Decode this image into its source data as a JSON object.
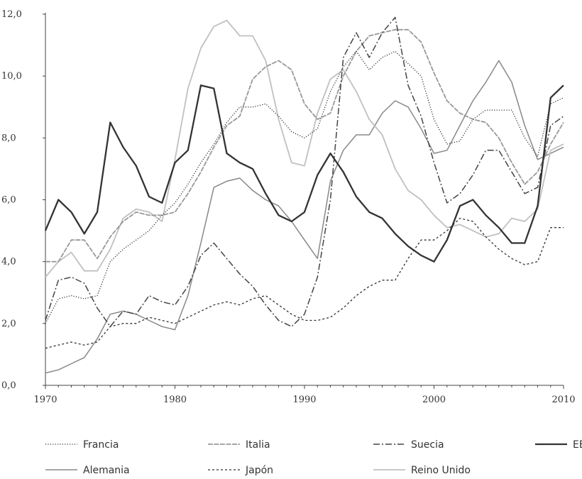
{
  "chart_data": {
    "type": "line",
    "title": "",
    "xlabel": "",
    "ylabel": "",
    "xlim": [
      1970,
      2010
    ],
    "ylim": [
      0,
      12
    ],
    "x_ticks": [
      "1970",
      "1980",
      "1990",
      "2000",
      "2010"
    ],
    "y_ticks": [
      "0,0",
      "2,0",
      "4,0",
      "6,0",
      "8,0",
      "10,0",
      "12,0"
    ],
    "grid": false,
    "legend_position": "bottom",
    "x": [
      1970,
      1971,
      1972,
      1973,
      1974,
      1975,
      1976,
      1977,
      1978,
      1979,
      1980,
      1981,
      1982,
      1983,
      1984,
      1985,
      1986,
      1987,
      1988,
      1989,
      1990,
      1991,
      1992,
      1993,
      1994,
      1995,
      1996,
      1997,
      1998,
      1999,
      2000,
      2001,
      2002,
      2003,
      2004,
      2005,
      2006,
      2007,
      2008,
      2009,
      2010
    ],
    "series": [
      {
        "name": "Francia",
        "color": "#333333",
        "dash": "1.2,2.2",
        "width": 1.3,
        "values": [
          2.0,
          2.8,
          2.9,
          2.8,
          2.9,
          4.0,
          4.4,
          4.7,
          5.0,
          5.5,
          5.9,
          6.5,
          7.2,
          7.8,
          8.5,
          9.0,
          9.0,
          9.1,
          8.7,
          8.2,
          8.0,
          8.3,
          9.5,
          10.3,
          10.8,
          10.2,
          10.6,
          10.8,
          10.4,
          10.0,
          8.6,
          7.8,
          7.9,
          8.6,
          8.9,
          8.9,
          8.9,
          8.0,
          7.4,
          9.1,
          9.3
        ]
      },
      {
        "name": "Italia",
        "color": "#999999",
        "dash": "7,1.5",
        "width": 1.8,
        "values": [
          4.0,
          4.0,
          4.7,
          4.7,
          4.1,
          4.8,
          5.3,
          5.6,
          5.5,
          5.5,
          5.6,
          6.2,
          6.9,
          7.7,
          8.4,
          8.7,
          9.9,
          10.3,
          10.5,
          10.2,
          9.1,
          8.6,
          8.8,
          10.0,
          10.8,
          11.3,
          11.4,
          11.5,
          11.5,
          11.1,
          10.1,
          9.2,
          8.8,
          8.6,
          8.5,
          8.0,
          7.2,
          6.5,
          6.9,
          7.8,
          8.5
        ]
      },
      {
        "name": "Suecia",
        "color": "#444444",
        "dash": "9,3,2,3",
        "width": 1.5,
        "values": [
          2.1,
          3.4,
          3.5,
          3.3,
          2.5,
          1.9,
          2.4,
          2.3,
          2.9,
          2.7,
          2.6,
          3.2,
          4.2,
          4.6,
          4.1,
          3.6,
          3.2,
          2.6,
          2.1,
          1.9,
          2.3,
          3.5,
          6.0,
          10.6,
          11.4,
          10.6,
          11.4,
          11.9,
          9.7,
          8.7,
          7.2,
          5.9,
          6.2,
          6.8,
          7.6,
          7.6,
          6.9,
          6.2,
          6.4,
          8.4,
          8.7
        ]
      },
      {
        "name": "EEUU",
        "color": "#333333",
        "dash": "",
        "width": 2.3,
        "values": [
          5.0,
          6.0,
          5.6,
          4.9,
          5.6,
          8.5,
          7.7,
          7.1,
          6.1,
          5.9,
          7.2,
          7.6,
          9.7,
          9.6,
          7.5,
          7.2,
          7.0,
          6.2,
          5.5,
          5.3,
          5.6,
          6.8,
          7.5,
          6.9,
          6.1,
          5.6,
          5.4,
          4.9,
          4.5,
          4.2,
          4.0,
          4.7,
          5.8,
          6.0,
          5.5,
          5.1,
          4.6,
          4.6,
          5.8,
          9.3,
          9.7
        ]
      },
      {
        "name": "Alemania",
        "color": "#888888",
        "dash": "",
        "width": 1.5,
        "values": [
          0.4,
          0.5,
          0.7,
          0.9,
          1.5,
          2.3,
          2.4,
          2.3,
          2.1,
          1.9,
          1.8,
          2.9,
          4.6,
          6.4,
          6.6,
          6.7,
          6.3,
          6.0,
          5.8,
          5.3,
          4.7,
          4.1,
          6.6,
          7.6,
          8.1,
          8.1,
          8.8,
          9.2,
          9.0,
          8.3,
          7.5,
          7.6,
          8.4,
          9.2,
          9.8,
          10.5,
          9.8,
          8.4,
          7.3,
          7.5,
          7.7
        ]
      },
      {
        "name": "Japón",
        "color": "#333333",
        "dash": "3,3",
        "width": 1.3,
        "values": [
          1.2,
          1.3,
          1.4,
          1.3,
          1.4,
          1.9,
          2.0,
          2.0,
          2.2,
          2.1,
          2.0,
          2.2,
          2.4,
          2.6,
          2.7,
          2.6,
          2.8,
          2.9,
          2.6,
          2.3,
          2.1,
          2.1,
          2.2,
          2.5,
          2.9,
          3.2,
          3.4,
          3.4,
          4.1,
          4.7,
          4.7,
          5.0,
          5.4,
          5.3,
          4.8,
          4.4,
          4.1,
          3.9,
          4.0,
          5.1,
          5.1
        ]
      },
      {
        "name": "Reino Unido",
        "color": "#c0c0c0",
        "dash": "",
        "width": 1.8,
        "values": [
          3.5,
          4.0,
          4.3,
          3.7,
          3.7,
          4.4,
          5.4,
          5.7,
          5.6,
          5.3,
          7.3,
          9.6,
          10.9,
          11.6,
          11.8,
          11.3,
          11.3,
          10.5,
          8.6,
          7.2,
          7.1,
          8.8,
          9.9,
          10.2,
          9.5,
          8.6,
          8.1,
          7.0,
          6.3,
          6.0,
          5.5,
          5.1,
          5.2,
          5.0,
          4.8,
          4.9,
          5.4,
          5.3,
          5.7,
          7.6,
          7.8
        ]
      }
    ]
  }
}
